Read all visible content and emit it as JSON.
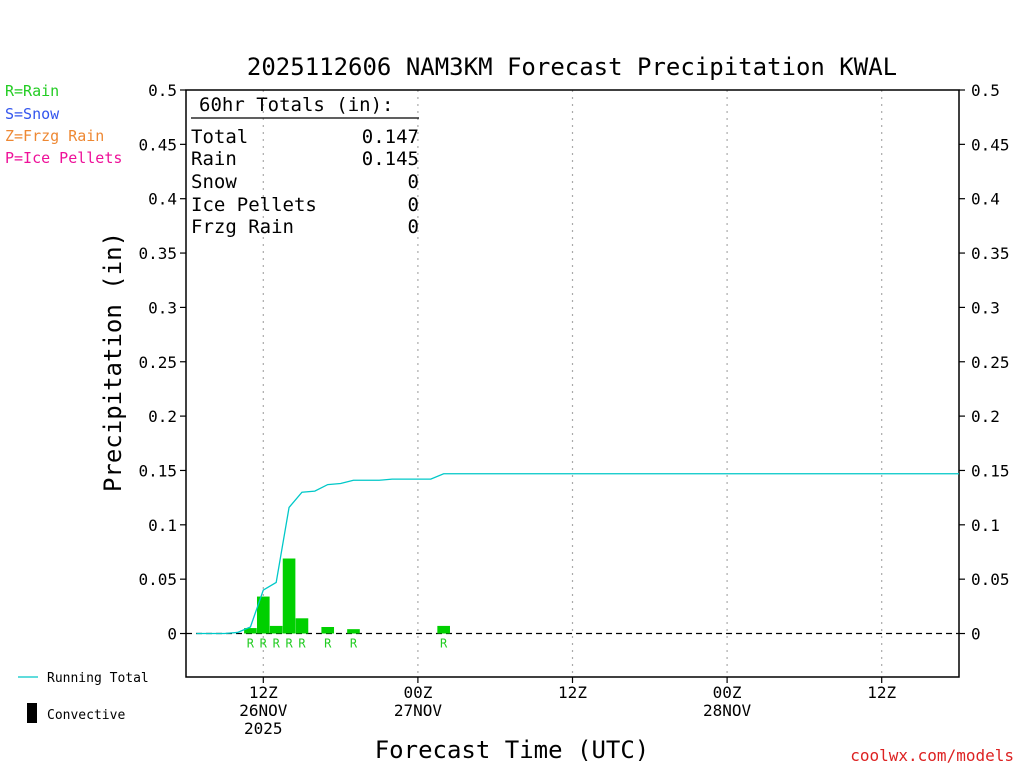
{
  "chart_data": {
    "type": "bar",
    "title": "2025112606 NAM3KM Forecast Precipitation KWAL",
    "xlabel": "Forecast Time (UTC)",
    "ylabel": "Precipitation (in)",
    "ylim": [
      -0.04,
      0.5
    ],
    "y_ticks": [
      0,
      0.05,
      0.1,
      0.15,
      0.2,
      0.25,
      0.3,
      0.35,
      0.4,
      0.45,
      0.5
    ],
    "y_tick_labels": [
      "0",
      "0.05",
      "0.1",
      "0.15",
      "0.2",
      "0.25",
      "0.3",
      "0.35",
      "0.4",
      "0.45",
      "0.5"
    ],
    "x_unit": "forecast hour",
    "xlim": [
      0,
      60
    ],
    "x_ticks": [
      {
        "hour": 6,
        "lines": [
          "12Z",
          "26NOV",
          "2025"
        ]
      },
      {
        "hour": 18,
        "lines": [
          "00Z",
          "27NOV"
        ]
      },
      {
        "hour": 30,
        "lines": [
          "12Z"
        ]
      },
      {
        "hour": 42,
        "lines": [
          "00Z",
          "28NOV"
        ]
      },
      {
        "hour": 54,
        "lines": [
          "12Z"
        ]
      }
    ],
    "grid": "vertical dotted at x ticks",
    "bars": [
      {
        "hour": 5,
        "value": 0.005,
        "type": "R"
      },
      {
        "hour": 6,
        "value": 0.034,
        "type": "R"
      },
      {
        "hour": 7,
        "value": 0.007,
        "type": "R"
      },
      {
        "hour": 8,
        "value": 0.069,
        "type": "R"
      },
      {
        "hour": 9,
        "value": 0.014,
        "type": "R"
      },
      {
        "hour": 11,
        "value": 0.006,
        "type": "R"
      },
      {
        "hour": 13,
        "value": 0.004,
        "type": "R"
      },
      {
        "hour": 20,
        "value": 0.007,
        "type": "R"
      }
    ],
    "running_total": {
      "name": "Running Total",
      "color": "#00c8c8",
      "points": [
        [
          0.8,
          0
        ],
        [
          1,
          0
        ],
        [
          2,
          0
        ],
        [
          3,
          0
        ],
        [
          4,
          0.001
        ],
        [
          5,
          0.006
        ],
        [
          6,
          0.04
        ],
        [
          7,
          0.047
        ],
        [
          8,
          0.116
        ],
        [
          9,
          0.13
        ],
        [
          10,
          0.131
        ],
        [
          11,
          0.137
        ],
        [
          12,
          0.138
        ],
        [
          13,
          0.141
        ],
        [
          14,
          0.141
        ],
        [
          15,
          0.141
        ],
        [
          16,
          0.142
        ],
        [
          17,
          0.142
        ],
        [
          18,
          0.142
        ],
        [
          19,
          0.142
        ],
        [
          20,
          0.147
        ],
        [
          60,
          0.147
        ]
      ]
    },
    "totals_box": {
      "heading": "60hr Totals (in):",
      "rows": [
        {
          "label": "Total",
          "value": "0.147"
        },
        {
          "label": "Rain",
          "value": "0.145"
        },
        {
          "label": "Snow",
          "value": "0"
        },
        {
          "label": "Ice Pellets",
          "value": "0"
        },
        {
          "label": "Frzg Rain",
          "value": "0"
        }
      ]
    },
    "legend_types": [
      {
        "text": "R=Rain",
        "color": "#22cc22"
      },
      {
        "text": "S=Snow",
        "color": "#3355ee"
      },
      {
        "text": "Z=Frzg Rain",
        "color": "#ee8833"
      },
      {
        "text": "P=Ice Pellets",
        "color": "#ee1199"
      }
    ],
    "legend_bottom": [
      {
        "text": "Running Total",
        "kind": "line",
        "color": "#00c8c8"
      },
      {
        "text": "Convective",
        "kind": "bar",
        "color": "#000000"
      }
    ],
    "credit": "coolwx.com/models",
    "colors": {
      "rain_bar": "#00d000",
      "rain_label": "#22cc22",
      "zero_line": "#000000",
      "grid": "#aaaaaa",
      "credit": "#dd2222"
    }
  }
}
